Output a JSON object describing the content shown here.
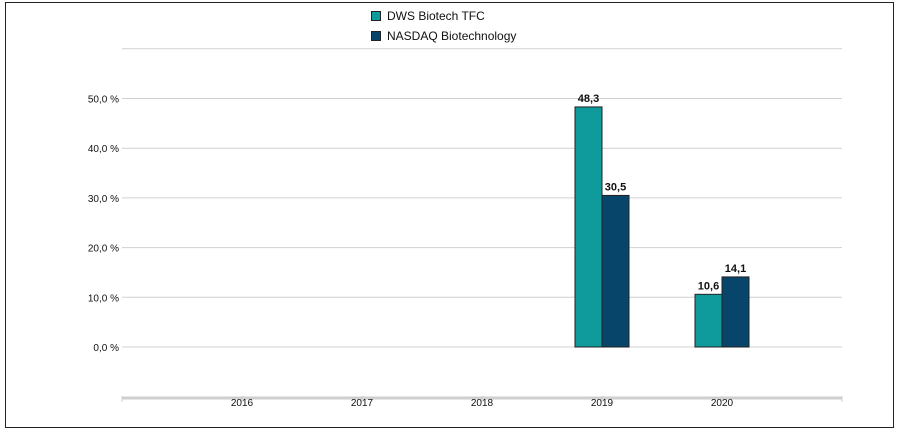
{
  "chart_data": {
    "type": "bar",
    "categories": [
      "2016",
      "2017",
      "2018",
      "2019",
      "2020"
    ],
    "series": [
      {
        "name": "DWS Biotech  TFC",
        "color": "#0f9b9b",
        "values": [
          null,
          null,
          null,
          48.3,
          10.6
        ],
        "labels": [
          "",
          "",
          "",
          "48,3",
          "10,6"
        ]
      },
      {
        "name": "NASDAQ Biotechnology",
        "color": "#08456a",
        "values": [
          null,
          null,
          null,
          30.5,
          14.1
        ],
        "labels": [
          "",
          "",
          "",
          "30,5",
          "14,1"
        ]
      }
    ],
    "yticks": [
      0,
      10,
      20,
      30,
      40,
      50
    ],
    "ytick_labels": [
      "0,0 %",
      "10,0 %",
      "20,0 %",
      "30,0 %",
      "40,0 %",
      "50,0 %"
    ],
    "ylim": [
      0,
      60
    ],
    "grid": true,
    "legend": "top-center"
  }
}
